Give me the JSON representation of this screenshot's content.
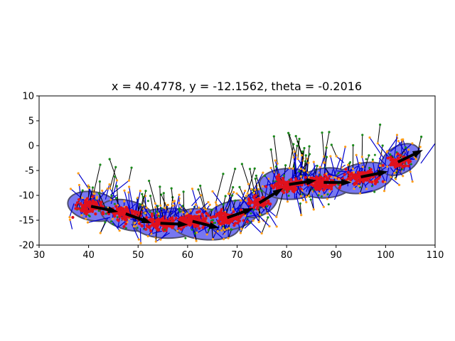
{
  "chart_data": {
    "type": "scatter",
    "title": "x = 40.4778, y = -12.1562, theta = -0.2016",
    "xlabel": "",
    "ylabel": "",
    "xlim": [
      30,
      110
    ],
    "ylim": [
      -20,
      10
    ],
    "xticks": [
      "30",
      "40",
      "50",
      "60",
      "70",
      "80",
      "90",
      "100",
      "110"
    ],
    "yticks": [
      "10",
      "5",
      "0",
      "-5",
      "-10",
      "-15",
      "-20"
    ],
    "grid": false,
    "colors": {
      "ellipse_fill": "#7070f0",
      "ellipse_edge": "#505070",
      "particles": "#e0101c",
      "landmark_points": "#ff9f1a",
      "observation_points": "#1a8a1a",
      "rays": "#000000",
      "heading_arrows": "#000000",
      "blue_lines": "#0000cc"
    },
    "poses": [
      {
        "x": 40.5,
        "y": -12.2,
        "theta": -0.2
      },
      {
        "x": 47.5,
        "y": -13.7,
        "theta": -0.35
      },
      {
        "x": 54.5,
        "y": -15.6,
        "theta": -0.05
      },
      {
        "x": 61.0,
        "y": -15.2,
        "theta": -0.25
      },
      {
        "x": 68.0,
        "y": -14.5,
        "theta": 0.35
      },
      {
        "x": 74.5,
        "y": -11.5,
        "theta": 0.55
      },
      {
        "x": 80.5,
        "y": -7.8,
        "theta": 0.15
      },
      {
        "x": 87.5,
        "y": -7.4,
        "theta": 0.0
      },
      {
        "x": 95.0,
        "y": -6.3,
        "theta": 0.2
      },
      {
        "x": 102.5,
        "y": -3.3,
        "theta": 0.45
      }
    ],
    "uncertainty_ellipses": [
      {
        "cx": 41.0,
        "cy": -12.2,
        "w": 10.5,
        "h": 5.8,
        "angle": -10
      },
      {
        "cx": 48.0,
        "cy": -14.0,
        "w": 11.5,
        "h": 5.8,
        "angle": -15
      },
      {
        "cx": 56.0,
        "cy": -15.6,
        "w": 14.0,
        "h": 6.0,
        "angle": 0
      },
      {
        "cx": 63.5,
        "cy": -15.8,
        "w": 14.0,
        "h": 6.2,
        "angle": -5
      },
      {
        "cx": 69.0,
        "cy": -14.0,
        "w": 11.0,
        "h": 5.6,
        "angle": 15
      },
      {
        "cx": 74.5,
        "cy": -11.5,
        "w": 8.0,
        "h": 5.0,
        "angle": 30
      },
      {
        "cx": 80.5,
        "cy": -7.7,
        "w": 12.0,
        "h": 6.2,
        "angle": 0
      },
      {
        "cx": 88.0,
        "cy": -7.5,
        "w": 11.5,
        "h": 6.0,
        "angle": 5
      },
      {
        "cx": 95.5,
        "cy": -6.5,
        "w": 12.0,
        "h": 6.0,
        "angle": 10
      },
      {
        "cx": 103.0,
        "cy": -2.8,
        "w": 8.5,
        "h": 5.5,
        "angle": 30
      }
    ]
  }
}
